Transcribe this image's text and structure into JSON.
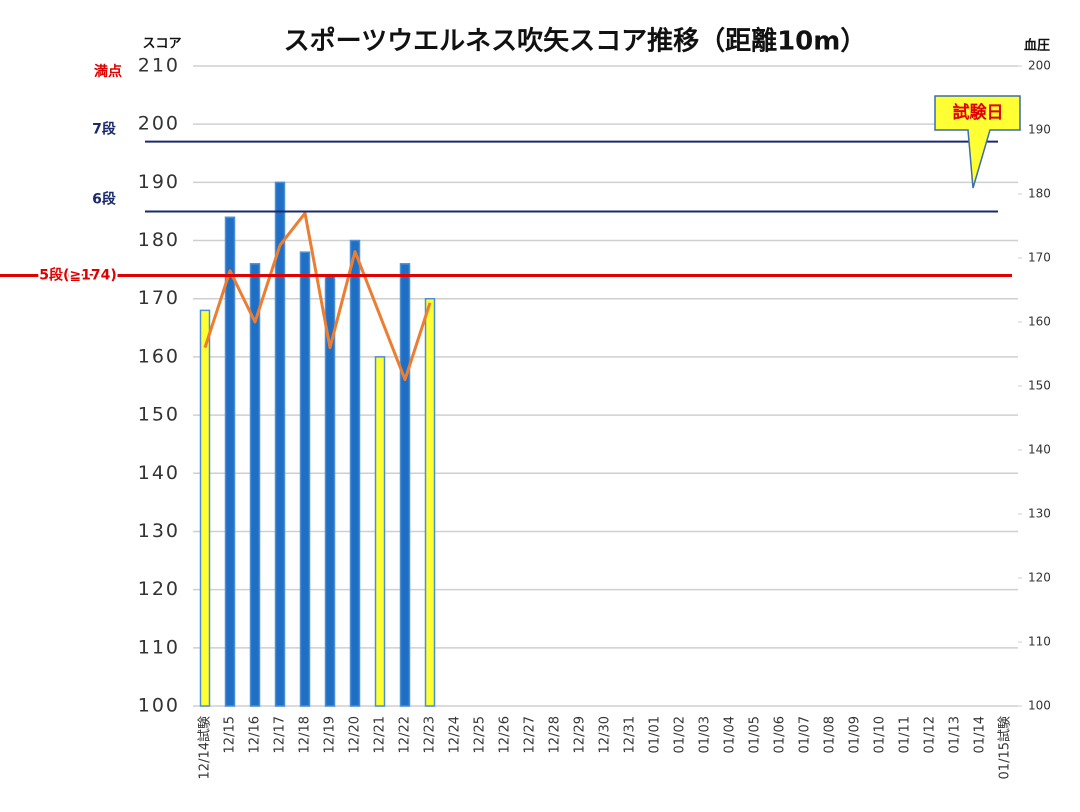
{
  "chart_data": {
    "type": "bar_line",
    "title": "スポーツウエルネス吹矢スコア推移（距離10m）",
    "y_label": "スコア",
    "y2_label": "血圧",
    "categories": [
      "12/14試験",
      "12/15",
      "12/16",
      "12/17",
      "12/18",
      "12/19",
      "12/20",
      "12/21",
      "12/22",
      "12/23",
      "12/24",
      "12/25",
      "12/26",
      "12/27",
      "12/28",
      "12/29",
      "12/30",
      "12/31",
      "01/01",
      "01/02",
      "01/03",
      "01/04",
      "01/05",
      "01/06",
      "01/07",
      "01/08",
      "01/09",
      "01/10",
      "01/11",
      "01/12",
      "01/13",
      "01/14",
      "01/15試験"
    ],
    "series": [
      {
        "type": "bar",
        "axis": "y",
        "color": "#1f6fc5",
        "colors": [
          "#ffff33",
          "#1f6fc5",
          "#1f6fc5",
          "#1f6fc5",
          "#1f6fc5",
          "#1f6fc5",
          "#1f6fc5",
          "#ffff33",
          "#1f6fc5",
          "#ffff33",
          null,
          null,
          null,
          null,
          null,
          null,
          null,
          null,
          null,
          null,
          null,
          null,
          null,
          null,
          null,
          null,
          null,
          null,
          null,
          null,
          null,
          null,
          null
        ],
        "values": [
          168,
          184,
          176,
          190,
          178,
          174,
          180,
          160,
          176,
          170,
          null,
          null,
          null,
          null,
          null,
          null,
          null,
          null,
          null,
          null,
          null,
          null,
          null,
          null,
          null,
          null,
          null,
          null,
          null,
          null,
          null,
          null,
          null
        ]
      },
      {
        "type": "line",
        "axis": "y2",
        "color": "#ed7d31",
        "values": [
          156,
          168,
          160,
          172,
          177,
          156,
          171,
          161,
          151,
          163,
          null,
          null,
          null,
          null,
          null,
          null,
          null,
          null,
          null,
          null,
          null,
          null,
          null,
          null,
          null,
          null,
          null,
          null,
          null,
          null,
          null,
          null,
          null
        ]
      }
    ],
    "ylim": [
      100,
      210
    ],
    "yticks": [
      100,
      110,
      120,
      130,
      140,
      150,
      160,
      170,
      180,
      190,
      200,
      210
    ],
    "y2lim": [
      100,
      200
    ],
    "y2ticks": [
      100,
      110,
      120,
      130,
      140,
      150,
      160,
      170,
      180,
      190,
      200
    ],
    "grid": true,
    "reference_lines": [
      {
        "label": "満点",
        "value": 210,
        "color": "#e00000",
        "line": false
      },
      {
        "label": "7段",
        "value": 197,
        "color": "#1a2a6c",
        "line": true
      },
      {
        "label": "6段",
        "value": 185,
        "color": "#1a2a6c",
        "line": true
      },
      {
        "label": "5段(≧174)",
        "value": 174,
        "color": "#e00000",
        "line": true
      }
    ],
    "callout": {
      "text": "試験日",
      "category": 31
    }
  }
}
